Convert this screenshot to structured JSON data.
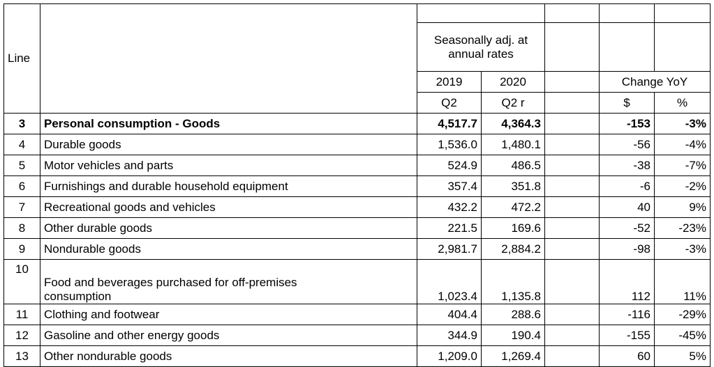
{
  "header": {
    "line": "Line",
    "seasonally": "Seasonally adj. at annual rates",
    "year_2019": "2019",
    "year_2020": "2020",
    "q2": "Q2",
    "q2r": "Q2 r",
    "change_yoy": "Change YoY",
    "dollar": "$",
    "percent": "%"
  },
  "table": {
    "rows": [
      [
        "3",
        "Personal consumption - Goods",
        "4,517.7",
        "4,364.3",
        "-153",
        "-3%"
      ],
      [
        "4",
        "Durable goods",
        "1,536.0",
        "1,480.1",
        "-56",
        "-4%"
      ],
      [
        "5",
        "Motor vehicles and parts",
        "524.9",
        "486.5",
        "-38",
        "-7%"
      ],
      [
        "6",
        "Furnishings and durable household equipment",
        "357.4",
        "351.8",
        "-6",
        "-2%"
      ],
      [
        "7",
        "Recreational goods and vehicles",
        "432.2",
        "472.2",
        "40",
        "9%"
      ],
      [
        "8",
        "Other durable goods",
        "221.5",
        "169.6",
        "-52",
        "-23%"
      ],
      [
        "9",
        "Nondurable goods",
        "2,981.7",
        "2,884.2",
        "-98",
        "-3%"
      ],
      [
        "10",
        "Food and beverages purchased for off-premises consumption",
        "1,023.4",
        "1,135.8",
        "112",
        "11%"
      ],
      [
        "11",
        "Clothing and footwear",
        "404.4",
        "288.6",
        "-116",
        "-29%"
      ],
      [
        "12",
        "Gasoline and other energy goods",
        "344.9",
        "190.4",
        "-155",
        "-45%"
      ],
      [
        "13",
        "Other nondurable goods",
        "1,209.0",
        "1,269.4",
        "60",
        "5%"
      ]
    ]
  }
}
